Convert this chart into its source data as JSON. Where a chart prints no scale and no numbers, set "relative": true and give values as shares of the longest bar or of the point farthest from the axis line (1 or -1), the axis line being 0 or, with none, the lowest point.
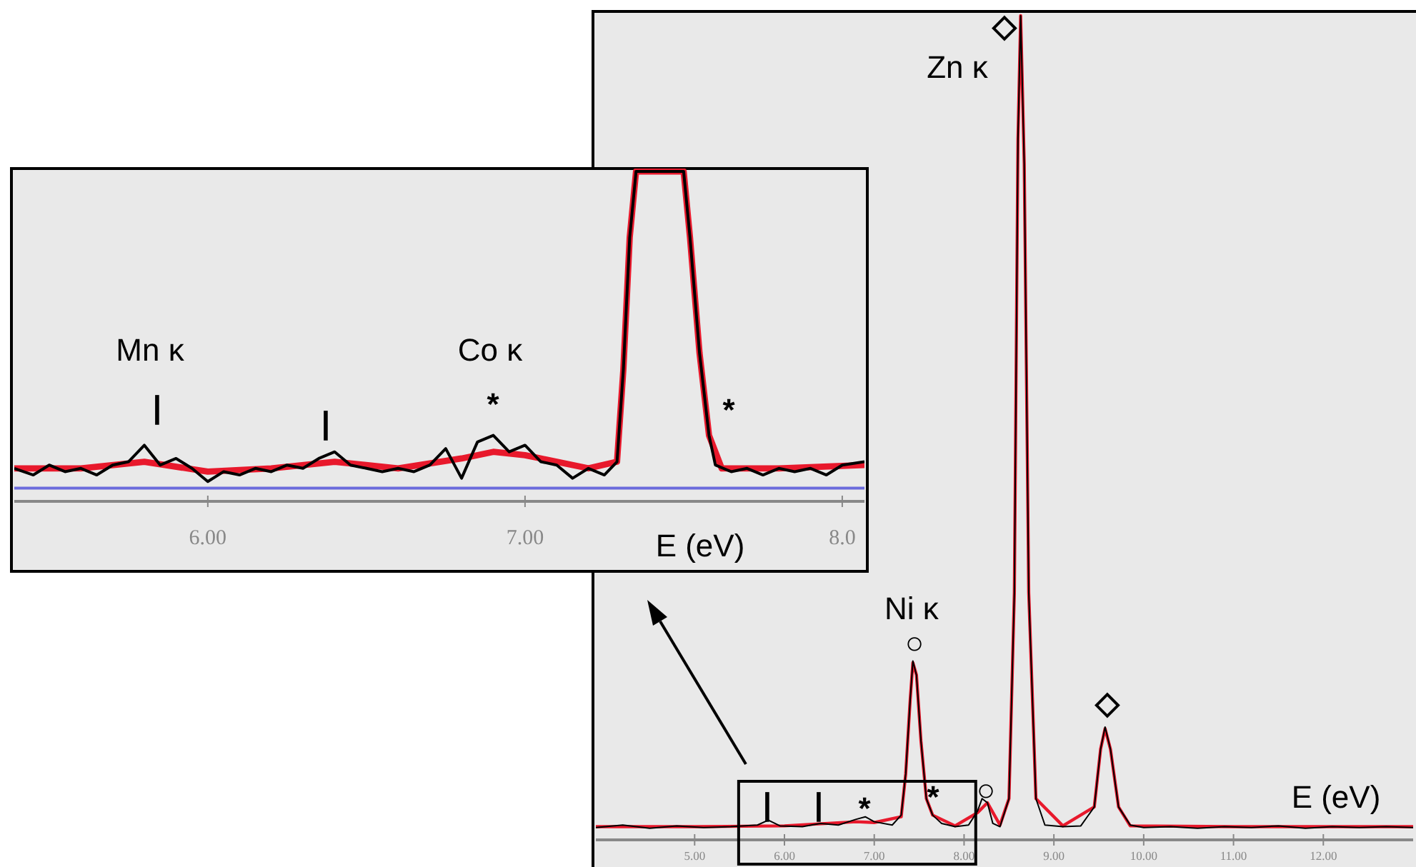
{
  "chart_data": [
    {
      "type": "line",
      "relative": true,
      "xlabel": "E (eV)",
      "xlim": [
        3.9,
        13.0
      ],
      "grid": false,
      "xticks": [
        {
          "value": 5,
          "label": "5.00"
        },
        {
          "value": 6,
          "label": "6.00"
        },
        {
          "value": 7,
          "label": "7.00"
        },
        {
          "value": 8,
          "label": "8.00"
        },
        {
          "value": 9,
          "label": "9.00"
        },
        {
          "value": 10,
          "label": "10.00"
        },
        {
          "value": 11,
          "label": "11.00"
        },
        {
          "value": 12,
          "label": "12.00"
        }
      ],
      "series": [
        {
          "color": "#e8192c",
          "x": [
            3.9,
            5.0,
            6.0,
            6.8,
            7.0,
            7.3,
            7.35,
            7.4,
            7.43,
            7.47,
            7.52,
            7.58,
            7.65,
            7.9,
            8.15,
            8.26,
            8.4,
            8.5,
            8.56,
            8.6,
            8.63,
            8.67,
            8.72,
            8.8,
            9.1,
            9.45,
            9.52,
            9.57,
            9.63,
            9.72,
            9.85,
            11.0,
            13.0
          ],
          "values": [
            0.016,
            0.016,
            0.017,
            0.022,
            0.021,
            0.028,
            0.08,
            0.17,
            0.215,
            0.2,
            0.12,
            0.05,
            0.03,
            0.017,
            0.033,
            0.045,
            0.018,
            0.05,
            0.3,
            0.85,
            1,
            0.82,
            0.3,
            0.05,
            0.017,
            0.04,
            0.11,
            0.135,
            0.11,
            0.04,
            0.017,
            0.016,
            0.016
          ]
        },
        {
          "color": "#000000",
          "x": [
            3.9,
            4.2,
            4.5,
            4.8,
            5.1,
            5.4,
            5.7,
            5.82,
            5.95,
            6.2,
            6.4,
            6.6,
            6.8,
            6.9,
            7.0,
            7.2,
            7.3,
            7.35,
            7.4,
            7.43,
            7.47,
            7.52,
            7.58,
            7.65,
            7.75,
            7.9,
            8.05,
            8.15,
            8.2,
            8.26,
            8.32,
            8.4,
            8.5,
            8.56,
            8.6,
            8.63,
            8.67,
            8.72,
            8.8,
            8.9,
            9.1,
            9.3,
            9.45,
            9.52,
            9.57,
            9.63,
            9.72,
            9.85,
            10.0,
            10.3,
            10.6,
            10.9,
            11.2,
            11.5,
            11.8,
            12.1,
            12.4,
            12.7,
            13.0
          ],
          "values": [
            0.015,
            0.018,
            0.014,
            0.017,
            0.015,
            0.016,
            0.018,
            0.024,
            0.017,
            0.016,
            0.02,
            0.018,
            0.025,
            0.028,
            0.022,
            0.018,
            0.03,
            0.08,
            0.17,
            0.217,
            0.2,
            0.12,
            0.05,
            0.03,
            0.02,
            0.016,
            0.018,
            0.035,
            0.05,
            0.045,
            0.02,
            0.016,
            0.05,
            0.3,
            0.85,
            1,
            0.82,
            0.3,
            0.05,
            0.018,
            0.016,
            0.017,
            0.04,
            0.11,
            0.137,
            0.11,
            0.04,
            0.018,
            0.015,
            0.016,
            0.014,
            0.016,
            0.015,
            0.017,
            0.014,
            0.016,
            0.015,
            0.016,
            0.015
          ]
        }
      ],
      "annotations": [
        "◇",
        "Zn κ",
        "Ni κ",
        "○",
        "◇",
        "○",
        "|",
        "|",
        "*",
        "*"
      ]
    },
    {
      "type": "line",
      "relative": true,
      "xlabel": "E (eV)",
      "xlim": [
        5.39,
        8.07
      ],
      "grid": false,
      "xticks": [
        {
          "value": 6,
          "label": "6.00"
        },
        {
          "value": 7,
          "label": "7.00"
        },
        {
          "value": 8,
          "label": "8.0"
        }
      ],
      "ref_lines": [
        {
          "axis": "y",
          "value": 0.04,
          "color": "#6b6bdc"
        }
      ],
      "series": [
        {
          "color": "#e8192c",
          "x": [
            5.39,
            5.6,
            5.8,
            6.0,
            6.2,
            6.4,
            6.6,
            6.8,
            6.9,
            7.0,
            7.2,
            7.29,
            7.31,
            7.33,
            7.35,
            7.5,
            7.52,
            7.55,
            7.58,
            7.62,
            7.8,
            8.07
          ],
          "values": [
            0.1,
            0.1,
            0.12,
            0.09,
            0.1,
            0.12,
            0.1,
            0.13,
            0.15,
            0.14,
            0.1,
            0.12,
            0.4,
            0.8,
            1,
            1,
            0.8,
            0.45,
            0.2,
            0.1,
            0.1,
            0.11
          ]
        },
        {
          "color": "#000000",
          "x": [
            5.39,
            5.45,
            5.5,
            5.55,
            5.6,
            5.65,
            5.7,
            5.75,
            5.8,
            5.85,
            5.9,
            5.95,
            6.0,
            6.05,
            6.1,
            6.15,
            6.2,
            6.25,
            6.3,
            6.35,
            6.4,
            6.45,
            6.5,
            6.55,
            6.6,
            6.65,
            6.7,
            6.75,
            6.8,
            6.85,
            6.9,
            6.95,
            7.0,
            7.05,
            7.1,
            7.15,
            7.2,
            7.25,
            7.29,
            7.31,
            7.33,
            7.35,
            7.5,
            7.52,
            7.55,
            7.58,
            7.6,
            7.65,
            7.7,
            7.75,
            7.8,
            7.85,
            7.9,
            7.95,
            8.0,
            8.07
          ],
          "values": [
            0.1,
            0.08,
            0.11,
            0.09,
            0.1,
            0.08,
            0.11,
            0.12,
            0.17,
            0.11,
            0.13,
            0.1,
            0.06,
            0.09,
            0.08,
            0.1,
            0.09,
            0.11,
            0.1,
            0.13,
            0.15,
            0.11,
            0.1,
            0.09,
            0.1,
            0.09,
            0.11,
            0.16,
            0.07,
            0.18,
            0.2,
            0.15,
            0.17,
            0.12,
            0.11,
            0.07,
            0.1,
            0.08,
            0.12,
            0.4,
            0.8,
            1,
            1,
            0.8,
            0.45,
            0.2,
            0.11,
            0.09,
            0.1,
            0.08,
            0.1,
            0.09,
            0.1,
            0.08,
            0.11,
            0.12
          ]
        }
      ],
      "annotations": [
        "Mn κ",
        "|",
        "|",
        "Co κ",
        "*",
        "*"
      ]
    }
  ]
}
